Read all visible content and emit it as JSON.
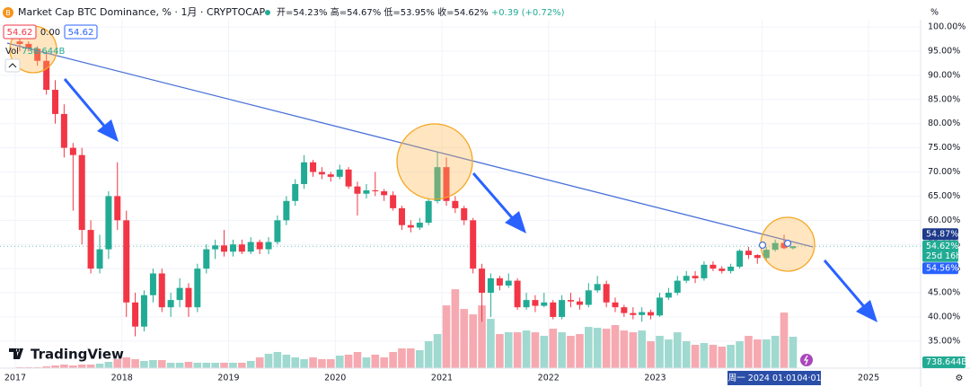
{
  "chart_data": {
    "type": "candlestick",
    "title": "Market Cap BTC Dominance",
    "unit": "%",
    "interval": "1月",
    "source": "CRYPTOCAP",
    "ohlc_legend": [
      "开=54.23%",
      "高=54.67%",
      "低=53.95%",
      "收=54.62%",
      "+0.39 (+0.72%)"
    ],
    "trade_panel": {
      "sell": "54.62",
      "spread": "0.00",
      "buy": "54.62"
    },
    "volume_name": "Vol",
    "logo": "TradingView",
    "colors": {
      "up": "#22ab94",
      "down": "#f23645",
      "up_volume": "#9fd9cf",
      "down_volume": "#f6a9b0"
    },
    "x": [
      2017.042,
      2017.125,
      2017.208,
      2017.292,
      2017.375,
      2017.458,
      2017.542,
      2017.625,
      2017.708,
      2017.792,
      2017.875,
      2017.958,
      2018.042,
      2018.125,
      2018.208,
      2018.292,
      2018.375,
      2018.458,
      2018.542,
      2018.625,
      2018.708,
      2018.792,
      2018.875,
      2018.958,
      2019.042,
      2019.125,
      2019.208,
      2019.292,
      2019.375,
      2019.458,
      2019.542,
      2019.625,
      2019.708,
      2019.792,
      2019.875,
      2019.958,
      2020.042,
      2020.125,
      2020.208,
      2020.292,
      2020.375,
      2020.458,
      2020.542,
      2020.625,
      2020.708,
      2020.792,
      2020.875,
      2020.958,
      2021.042,
      2021.125,
      2021.208,
      2021.292,
      2021.375,
      2021.458,
      2021.542,
      2021.625,
      2021.708,
      2021.792,
      2021.875,
      2021.958,
      2022.042,
      2022.125,
      2022.208,
      2022.292,
      2022.375,
      2022.458,
      2022.542,
      2022.625,
      2022.708,
      2022.792,
      2022.875,
      2022.958,
      2023.042,
      2023.125,
      2023.208,
      2023.292,
      2023.375,
      2023.458,
      2023.542,
      2023.625,
      2023.708,
      2023.792,
      2023.875,
      2023.958,
      2024.042,
      2024.125,
      2024.208,
      2024.292
    ],
    "open": [
      97,
      96.5,
      95.5,
      93,
      87,
      82,
      75,
      73.5,
      58,
      50,
      54,
      65,
      60,
      43,
      38,
      44.5,
      49,
      42,
      43.5,
      46,
      42,
      50,
      54,
      54.8,
      53.5,
      55,
      53.5,
      55.5,
      54,
      55.5,
      60,
      64,
      67.5,
      72,
      70,
      69.5,
      69,
      70.5,
      67,
      65.5,
      66.2,
      66,
      65.2,
      62.5,
      59,
      58.5,
      59.5,
      64,
      71,
      64,
      62.5,
      60,
      50,
      45,
      48,
      46.5,
      47.5,
      42,
      43.5,
      42.3,
      43,
      40,
      43.5,
      43.2,
      42.5,
      45.5,
      46.8,
      43,
      42,
      40.8,
      40.4,
      41,
      40.3,
      44,
      45,
      47.5,
      48.5,
      48,
      50.8,
      50,
      49.5,
      50.4,
      53.7,
      52.8,
      52.2,
      53.9,
      55.3,
      54.23
    ],
    "high": [
      98.5,
      97,
      96,
      95,
      89,
      84,
      76,
      75,
      60,
      57,
      66,
      72,
      62,
      45,
      45.5,
      50,
      50,
      45,
      48,
      47,
      51,
      55,
      56,
      58,
      56,
      56,
      56.5,
      56,
      56.5,
      61,
      65,
      68.5,
      73.5,
      72.5,
      71,
      70,
      71.5,
      71,
      68,
      67.5,
      70,
      66.5,
      66,
      63,
      60,
      60.5,
      64.5,
      74,
      73,
      65,
      63,
      60.5,
      51,
      49,
      48.5,
      49,
      48,
      45,
      44.5,
      45,
      43.5,
      44.5,
      45,
      44,
      47,
      48.5,
      47.5,
      44,
      42.5,
      42,
      42,
      41.5,
      45,
      46,
      48.5,
      49.5,
      49.5,
      51.5,
      51.5,
      50.5,
      51,
      54,
      54.5,
      53,
      54.5,
      56,
      57,
      54.67
    ],
    "low": [
      95,
      95,
      92,
      86,
      80,
      73,
      62,
      55,
      49,
      49,
      52,
      58,
      40,
      36,
      37,
      43,
      41,
      40,
      42,
      40,
      41,
      49,
      52,
      52.5,
      52.5,
      53,
      53,
      53,
      53,
      55,
      59,
      63,
      66.5,
      69,
      68.5,
      68,
      68.5,
      66.5,
      61,
      64.5,
      65,
      64,
      62,
      58,
      57.5,
      58,
      59,
      63.5,
      63,
      61.5,
      59,
      49,
      39,
      40,
      45.5,
      46,
      41.5,
      41.5,
      41,
      42,
      39.5,
      39.5,
      42,
      41.5,
      42,
      45,
      42,
      41,
      40,
      39.5,
      39,
      39.5,
      40,
      43.5,
      44.5,
      47,
      47,
      47.5,
      49.5,
      49,
      49,
      50,
      52,
      51,
      51.5,
      53.5,
      54,
      53.95
    ],
    "close": [
      96.5,
      95.5,
      93,
      87,
      82,
      75,
      73.5,
      58,
      50,
      54,
      65,
      60,
      43,
      38,
      44.5,
      49,
      42,
      43.5,
      46,
      42,
      50,
      54,
      54.8,
      53.5,
      55,
      53.5,
      55.5,
      54,
      55.5,
      60,
      64,
      67.5,
      72,
      70,
      69.5,
      69,
      70.5,
      67,
      65.5,
      66.2,
      66,
      65.2,
      62.5,
      59,
      58.5,
      59.5,
      64,
      71,
      64,
      62.5,
      60,
      50,
      45,
      48,
      46.5,
      47.5,
      42,
      43.5,
      42.3,
      43,
      40,
      43.5,
      43.2,
      42.5,
      45.5,
      46.8,
      43,
      42,
      40.8,
      40.4,
      41,
      40.3,
      44,
      45,
      47.5,
      48.5,
      48,
      50.8,
      50,
      49.5,
      50.4,
      53.7,
      52.8,
      52.2,
      53.9,
      55.3,
      54.23,
      54.62
    ],
    "volume": [
      21,
      21,
      21,
      42,
      63,
      84,
      63,
      84,
      84,
      105,
      148,
      211,
      253,
      211,
      169,
      190,
      190,
      127,
      127,
      148,
      127,
      127,
      127,
      127,
      127,
      127,
      169,
      253,
      338,
      380,
      317,
      253,
      211,
      253,
      211,
      211,
      295,
      317,
      380,
      253,
      317,
      253,
      380,
      464,
      464,
      422,
      633,
      802,
      1477,
      1857,
      1393,
      1266,
      1477,
      1160,
      802,
      844,
      844,
      886,
      844,
      760,
      928,
      844,
      760,
      802,
      971,
      950,
      928,
      1013,
      886,
      844,
      886,
      633,
      760,
      675,
      844,
      633,
      549,
      591,
      549,
      506,
      549,
      633,
      760,
      675,
      675,
      760,
      1308,
      738.644
    ],
    "volume_labels": {
      "87": "738.644B"
    },
    "xlim": [
      2016.857,
      2025.488
    ],
    "xticks": [
      2017,
      2018,
      2019,
      2020,
      2021,
      2022,
      2023,
      2024,
      2025
    ],
    "ylim": [
      29.4,
      101.5
    ],
    "yticks": [
      {
        "value": 35,
        "label": "35.00%"
      },
      {
        "value": 40,
        "label": "40.00%"
      },
      {
        "value": 45,
        "label": "45.00%"
      },
      {
        "value": 50,
        "label": "50.00%"
      },
      {
        "value": 55,
        "label": "55.00%"
      },
      {
        "value": 60,
        "label": "60.00%"
      },
      {
        "value": 65,
        "label": "65.00%"
      },
      {
        "value": 70,
        "label": "70.00%"
      },
      {
        "value": 75,
        "label": "75.00%"
      },
      {
        "value": 80,
        "label": "80.00%"
      },
      {
        "value": 85,
        "label": "85.00%"
      },
      {
        "value": 90,
        "label": "90.00%"
      },
      {
        "value": 95,
        "label": "95.00%"
      },
      {
        "value": 100,
        "label": "100.00%"
      }
    ],
    "y2lim": [
      0,
      8200
    ],
    "grid": true,
    "last_price_label": "54.62%",
    "countdown": "25d 16h",
    "levels": [
      {
        "value": 54.87,
        "label": "54.87%"
      },
      {
        "value": 54.56,
        "label": "54.56%"
      }
    ],
    "crosshair_dates": [
      "周一 2024 01·01",
      "04·01"
    ]
  }
}
